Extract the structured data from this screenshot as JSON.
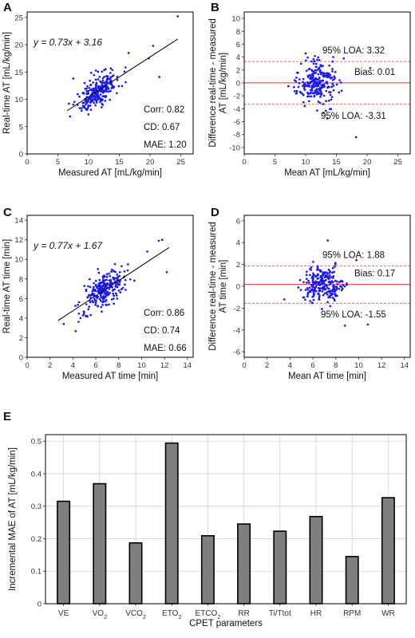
{
  "chart_data": [
    {
      "panel": "A",
      "type": "scatter",
      "xlabel": "Measured AT [mL/kg/min]",
      "ylabel": "Real-time AT [mL/kg/min]",
      "xlim": [
        0,
        27
      ],
      "ylim": [
        0,
        26
      ],
      "xticks": [
        0,
        5,
        10,
        15,
        20,
        25
      ],
      "yticks": [
        0,
        5,
        10,
        15,
        20,
        25
      ],
      "grid": false,
      "fit": {
        "slope": 0.73,
        "intercept": 3.16,
        "x_range": [
          6.5,
          24.5
        ],
        "label": "y = 0.73x + 3.16"
      },
      "stats": [
        "Corr: 0.82",
        "CD: 0.67",
        "MAE: 1.20"
      ],
      "points": {
        "n": 250,
        "x_center": 11.5,
        "x_spread": 2.8,
        "x_min": 6.5,
        "x_max": 22,
        "noise": 1.4,
        "seed": 11,
        "extra": [
          [
            24.5,
            25.2
          ],
          [
            20.5,
            19.8
          ],
          [
            21.5,
            14.1
          ],
          [
            7.5,
            13.8
          ],
          [
            16.5,
            18.5
          ],
          [
            19.8,
            17.5
          ],
          [
            6.8,
            9.2
          ]
        ]
      }
    },
    {
      "panel": "B",
      "type": "scatter",
      "xlabel": "Mean AT [mL/kg/min]",
      "ylabel_lines": [
        "Difference  real-time - measured",
        "AT [mL/kg/min]"
      ],
      "xlim": [
        0,
        27
      ],
      "ylim": [
        -11,
        11
      ],
      "xticks": [
        0,
        5,
        10,
        15,
        20,
        25
      ],
      "yticks": [
        -10,
        -8,
        -6,
        -4,
        -2,
        0,
        2,
        4,
        6,
        8,
        10
      ],
      "grid": false,
      "bias": 0.01,
      "loa_upper": 3.32,
      "loa_lower": -3.31,
      "bias_label": "Bias: 0.01",
      "loa_upper_label": "95% LOA: 3.32",
      "loa_lower_label": "95% LOA: -3.31",
      "points": {
        "n": 250,
        "x_center": 11.8,
        "x_spread": 2.6,
        "x_min": 7,
        "x_max": 20,
        "noise": 1.6,
        "seed": 23,
        "extra": [
          [
            18.2,
            -8.4
          ],
          [
            20.5,
            2.3
          ],
          [
            16.2,
            3.8
          ],
          [
            13.5,
            -5.5
          ]
        ]
      }
    },
    {
      "panel": "C",
      "type": "scatter",
      "xlabel": "Measured AT time [min]",
      "ylabel": "Real-time AT time [min]",
      "xlim": [
        0,
        14.5
      ],
      "ylim": [
        0,
        14.5
      ],
      "xticks": [
        0,
        2,
        4,
        6,
        8,
        10,
        12,
        14
      ],
      "yticks": [
        0,
        2,
        4,
        6,
        8,
        10,
        12,
        14
      ],
      "grid": false,
      "fit": {
        "slope": 0.77,
        "intercept": 1.67,
        "x_range": [
          2.7,
          12.4
        ],
        "label": "y = 0.77x + 1.67"
      },
      "stats": [
        "Corr: 0.86",
        "CD: 0.74",
        "MAE: 0.66"
      ],
      "points": {
        "n": 250,
        "x_center": 6.7,
        "x_spread": 1.7,
        "x_min": 2.7,
        "x_max": 12.2,
        "noise": 0.85,
        "seed": 37,
        "extra": [
          [
            11.8,
            12.0
          ],
          [
            12.2,
            8.7
          ],
          [
            11.5,
            11.9
          ],
          [
            3.2,
            3.4
          ],
          [
            10.5,
            10.8
          ]
        ]
      }
    },
    {
      "panel": "D",
      "type": "scatter",
      "xlabel": "Mean AT time [min]",
      "ylabel_lines": [
        "Difference  real-time - measured",
        "AT time [min]"
      ],
      "xlim": [
        0,
        14.5
      ],
      "ylim": [
        -6.5,
        6.5
      ],
      "xticks": [
        0,
        2,
        4,
        6,
        8,
        10,
        12,
        14
      ],
      "yticks": [
        -6,
        -4,
        -2,
        0,
        2,
        4,
        6
      ],
      "grid": false,
      "bias": 0.17,
      "loa_upper": 1.88,
      "loa_lower": -1.55,
      "bias_label": "Bias: 0.17",
      "loa_upper_label": "95% LOA: 1.88",
      "loa_lower_label": "95% LOA: -1.55",
      "points": {
        "n": 250,
        "x_center": 6.8,
        "x_spread": 1.6,
        "x_min": 3.4,
        "x_max": 11,
        "noise": 0.85,
        "seed": 53,
        "extra": [
          [
            7.3,
            4.2
          ],
          [
            8.8,
            -3.6
          ],
          [
            10.8,
            -3.5
          ],
          [
            9.8,
            2.4
          ],
          [
            3.5,
            -1.2
          ]
        ]
      }
    },
    {
      "panel": "E",
      "type": "bar",
      "xlabel": "CPET parameters",
      "ylabel": "Incremental MAE of AT [mL/kg/min]",
      "categories": [
        "VE",
        "VO₂",
        "VCO₂",
        "ETO₂",
        "ETCO₂",
        "RR",
        "Ti/Ttot",
        "HR",
        "RPM",
        "WR"
      ],
      "values": [
        0.315,
        0.369,
        0.187,
        0.494,
        0.209,
        0.245,
        0.223,
        0.268,
        0.145,
        0.326
      ],
      "ylim": [
        0,
        0.52
      ],
      "yticks": [
        0,
        0.1,
        0.2,
        0.3,
        0.4,
        0.5
      ],
      "grid": true,
      "bar_color": "#7f7f7f"
    }
  ],
  "colors": {
    "points": "#1a1aee",
    "fit_line": "#000000",
    "bias_line": "#ee3333",
    "loa_line": "#ee3333",
    "bar": "#7f7f7f"
  }
}
